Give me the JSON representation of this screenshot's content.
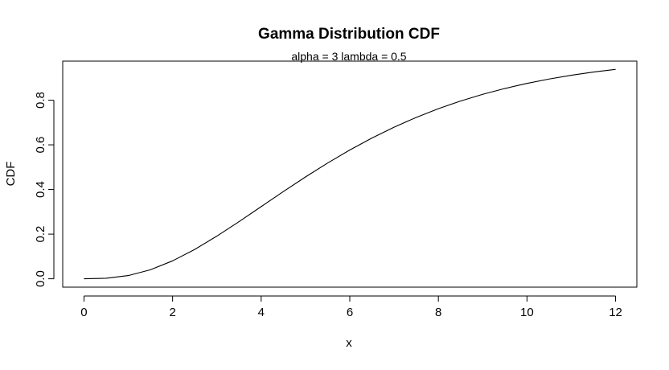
{
  "chart_data": {
    "type": "line",
    "title": "Gamma Distribution CDF",
    "subtitle": "alpha = 3  lambda = 0.5",
    "xlabel": "x",
    "ylabel": "CDF",
    "xlim": [
      -0.48,
      12.48
    ],
    "ylim": [
      -0.0375,
      0.975
    ],
    "x_ticks": [
      0,
      2,
      4,
      6,
      8,
      10,
      12
    ],
    "x_tick_labels": [
      "0",
      "2",
      "4",
      "6",
      "8",
      "10",
      "12"
    ],
    "y_ticks": [
      0.0,
      0.2,
      0.4,
      0.6,
      0.8
    ],
    "y_tick_labels": [
      "0.0",
      "0.2",
      "0.4",
      "0.6",
      "0.8"
    ],
    "grid": false,
    "legend": "none",
    "line_color": "#000000",
    "series": [
      {
        "x": [
          0,
          0.5,
          1,
          1.5,
          2,
          2.5,
          3,
          3.5,
          4,
          4.5,
          5,
          5.5,
          6,
          6.5,
          7,
          7.5,
          8,
          8.5,
          9,
          9.5,
          10,
          10.5,
          11,
          11.5,
          12
        ],
        "values": [
          0,
          0.0022,
          0.0144,
          0.0405,
          0.0803,
          0.1315,
          0.1912,
          0.256,
          0.3233,
          0.3907,
          0.4562,
          0.5185,
          0.5768,
          0.6306,
          0.6792,
          0.7229,
          0.7619,
          0.7963,
          0.8264,
          0.8524,
          0.8753,
          0.8948,
          0.9116,
          0.926,
          0.938
        ]
      }
    ]
  }
}
